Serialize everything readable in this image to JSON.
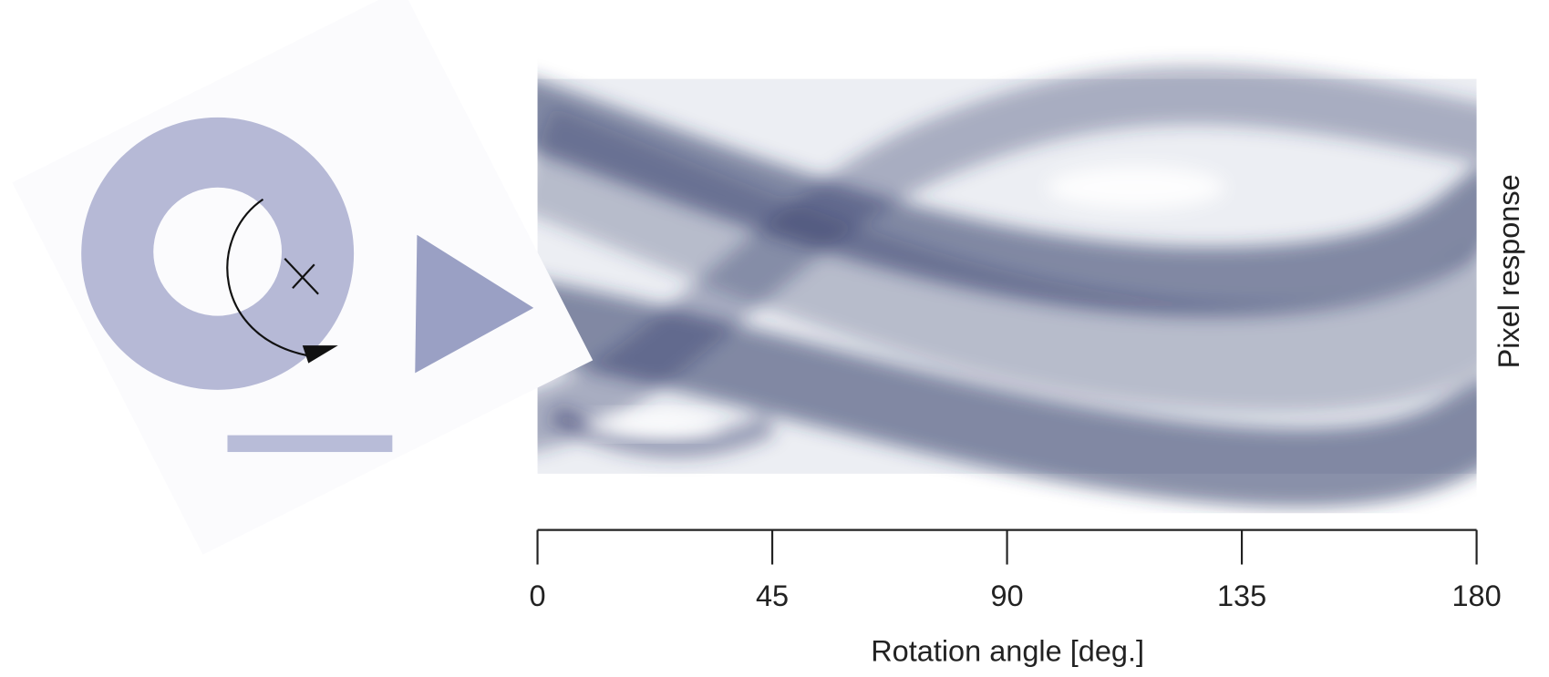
{
  "chart_data": {
    "type": "image",
    "xlabel": "Rotation angle [deg.]",
    "ylabel": "Pixel response",
    "xlim": [
      0,
      180
    ],
    "xticks": [
      0,
      45,
      90,
      135,
      180
    ]
  }
}
